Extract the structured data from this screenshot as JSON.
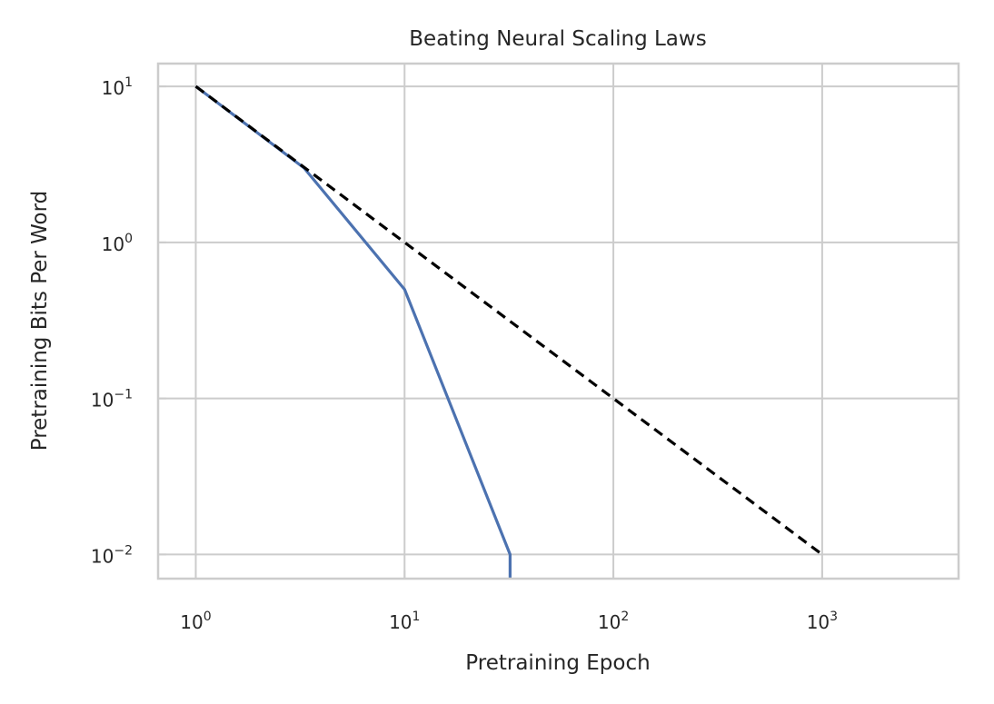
{
  "chart_data": {
    "type": "line",
    "title": "Beating Neural Scaling Laws",
    "xlabel": "Pretraining Epoch",
    "ylabel": "Pretraining Bits Per Word",
    "xscale": "log",
    "yscale": "log",
    "xlim": [
      0.66,
      4500
    ],
    "ylim": [
      0.007,
      14
    ],
    "grid": true,
    "xticks": [
      {
        "value": 1,
        "base": "10",
        "exp": "0"
      },
      {
        "value": 10,
        "base": "10",
        "exp": "1"
      },
      {
        "value": 100,
        "base": "10",
        "exp": "2"
      },
      {
        "value": 1000,
        "base": "10",
        "exp": "3"
      }
    ],
    "yticks": [
      {
        "value": 10,
        "base": "10",
        "exp": "1"
      },
      {
        "value": 1,
        "base": "10",
        "exp": "0"
      },
      {
        "value": 0.1,
        "base": "10",
        "exp": "−1"
      },
      {
        "value": 0.01,
        "base": "10",
        "exp": "−2"
      }
    ],
    "series": [
      {
        "style": "solid",
        "color": "#4c72b0",
        "x": [
          1,
          3.3,
          10,
          32,
          32
        ],
        "y": [
          10,
          3,
          0.5,
          0.01,
          0.007
        ]
      },
      {
        "style": "dashed",
        "color": "#000000",
        "x": [
          1,
          1000
        ],
        "y": [
          10,
          0.01
        ]
      }
    ]
  }
}
